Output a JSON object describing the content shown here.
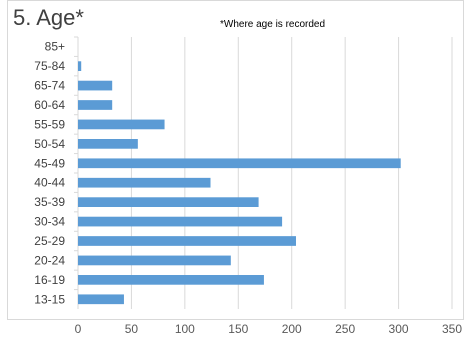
{
  "chart_data": {
    "type": "bar",
    "orientation": "horizontal",
    "title": "5. Age*",
    "note": "*Where age is recorded",
    "categories": [
      "85+",
      "75-84",
      "65-74",
      "60-64",
      "55-59",
      "50-54",
      "45-49",
      "40-44",
      "35-39",
      "30-34",
      "25-29",
      "20-24",
      "16-19",
      "13-15"
    ],
    "values": [
      0,
      3,
      32,
      32,
      81,
      56,
      302,
      124,
      169,
      191,
      204,
      143,
      174,
      43
    ],
    "xlim": [
      0,
      350
    ],
    "xticks": [
      0,
      50,
      100,
      150,
      200,
      250,
      300,
      350
    ],
    "grid": "vertical",
    "bar_color": "#5b9bd5",
    "legend": "none"
  }
}
